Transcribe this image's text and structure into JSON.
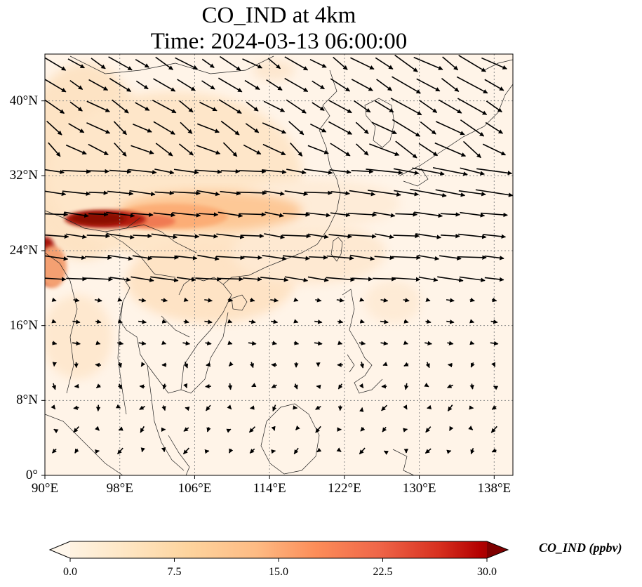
{
  "title": {
    "line1": "CO_IND at 4km",
    "line2": "Time: 2024-03-13 06:00:00"
  },
  "map": {
    "projection": "lat-lon",
    "extent": {
      "lon_min": 90,
      "lon_max": 140,
      "lat_min": 0,
      "lat_max": 45
    },
    "gridlines": "dotted",
    "lat_ticks": [
      {
        "value": 40,
        "label": "40°N"
      },
      {
        "value": 32,
        "label": "32°N"
      },
      {
        "value": 24,
        "label": "24°N"
      },
      {
        "value": 16,
        "label": "16°N"
      },
      {
        "value": 8,
        "label": "8°N"
      },
      {
        "value": 0,
        "label": "0°"
      }
    ],
    "lon_ticks": [
      {
        "value": 90,
        "label": "90°E"
      },
      {
        "value": 98,
        "label": "98°E"
      },
      {
        "value": 106,
        "label": "106°E"
      },
      {
        "value": 114,
        "label": "114°E"
      },
      {
        "value": 122,
        "label": "122°E"
      },
      {
        "value": 130,
        "label": "130°E"
      },
      {
        "value": 138,
        "label": "138°E"
      }
    ],
    "field_hotspots": [
      {
        "name": "band",
        "lon": 97,
        "lat": 27.3,
        "value": 28
      },
      {
        "name": "plume",
        "lon": 106,
        "lat": 27.5,
        "value": 13
      },
      {
        "name": "west-edge-north",
        "lon": 90,
        "lat": 24.4,
        "value": 26
      },
      {
        "name": "west-edge-south",
        "lon": 90,
        "lat": 21.5,
        "value": 22
      },
      {
        "name": "north-west",
        "lon": 91,
        "lat": 36,
        "value": 5
      },
      {
        "name": "south-china",
        "lon": 115,
        "lat": 23.5,
        "value": 4
      }
    ],
    "wind_field": "westerly to north-westerly north of 20°N, weak variable south of 16°N"
  },
  "colorbar": {
    "label": "CO_IND (ppbv)",
    "min": 0,
    "max": 30,
    "colormap": "OrRd",
    "extend": "both",
    "ticks": [
      {
        "value": 0,
        "label": "0.0"
      },
      {
        "value": 7.5,
        "label": "7.5"
      },
      {
        "value": 15,
        "label": "15.0"
      },
      {
        "value": 22.5,
        "label": "22.5"
      },
      {
        "value": 30,
        "label": "30.0"
      }
    ]
  },
  "colors": {
    "ocean": "#fff5eb",
    "low": "#fee5c6",
    "high": "#8b0000",
    "arrow": "#000000",
    "coast": "#222222",
    "grid": "#888888"
  }
}
